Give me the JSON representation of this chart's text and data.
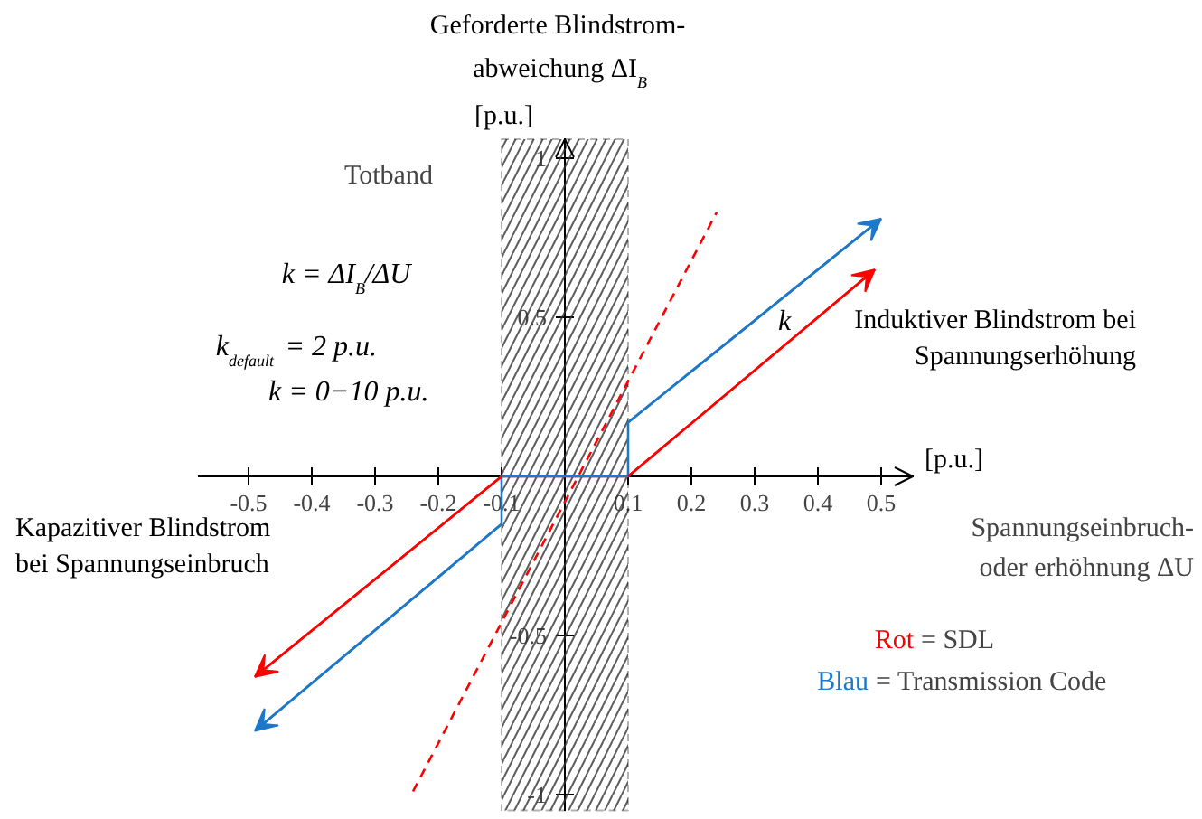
{
  "chart_data": {
    "type": "line",
    "ylabel": "Geforderte Blindstrom-\nabweichung ΔI$_{B}$",
    "xlabel": "Spannungseinbruch-\noder erhöhnung ΔU",
    "xlim": [
      -0.58,
      0.55
    ],
    "ylim": [
      -1.05,
      1.06
    ],
    "xticks": [
      {
        "value": -0.5,
        "label": "-0.5"
      },
      {
        "value": -0.4,
        "label": "-0.4"
      },
      {
        "value": -0.3,
        "label": "-0.3"
      },
      {
        "value": -0.2,
        "label": "-0.2"
      },
      {
        "value": -0.1,
        "label": "-0.1"
      },
      {
        "value": 0.1,
        "label": "0.1"
      },
      {
        "value": 0.2,
        "label": "0.2"
      },
      {
        "value": 0.3,
        "label": "0.3"
      },
      {
        "value": 0.4,
        "label": "0.4"
      },
      {
        "value": 0.5,
        "label": "0.5"
      }
    ],
    "yticks": [
      {
        "value": -1,
        "label": "-1"
      },
      {
        "value": -0.5,
        "label": "-0.5"
      },
      {
        "value": 0.5,
        "label": "0.5"
      },
      {
        "value": 1,
        "label": "1"
      }
    ],
    "series": [
      {
        "color": "#ff0000",
        "x": [
          -0.49,
          -0.1,
          0.1,
          0.49
        ],
        "values": [
          -0.63,
          0,
          0,
          0.65
        ]
      },
      {
        "color": "#1f77c8",
        "x": [
          -0.49,
          -0.1,
          -0.1,
          0.1,
          0.1,
          0.5
        ],
        "values": [
          -0.8,
          -0.15,
          0,
          0,
          0.17,
          0.81
        ]
      },
      {
        "color": "#ff0000",
        "line_style": "dashed",
        "x": [
          -0.24,
          0.24
        ],
        "values": [
          -0.99,
          0.83
        ]
      }
    ],
    "bands": [
      {
        "axis": "x",
        "from": -0.1,
        "to": 0.1,
        "label": "Totband"
      }
    ],
    "annotations": [
      "[p.u.]",
      "[p.u.]",
      "k = ΔI$_{B}$/ΔU",
      "k$_{default}$ = 2 p.u.",
      "k = 0−10 p.u.",
      "k",
      "Induktiver Blindstrom bei\nSpannungserhöhung",
      "Kapazitiver Blindstrom\nbei Spannungseinbruch",
      "Rot = SDL",
      "Blau = Transmission Code"
    ],
    "grid": false
  }
}
